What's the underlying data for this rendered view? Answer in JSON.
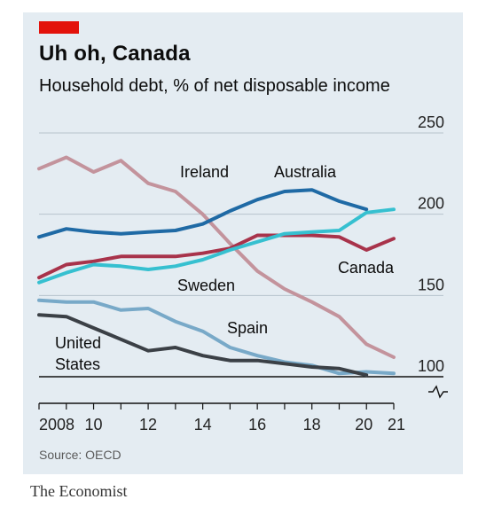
{
  "header": {
    "title": "Uh oh, Canada",
    "subtitle": "Household debt, % of net disposable income"
  },
  "footer": {
    "source": "Source: OECD",
    "brand": "The Economist"
  },
  "colors": {
    "panel": "#e4ecf2",
    "accent": "#e3120b",
    "grid": "#b7c3cc"
  },
  "chart_data": {
    "type": "line",
    "title": "Uh oh, Canada",
    "subtitle": "Household debt, % of net disposable income",
    "xlabel": "",
    "ylabel": "",
    "ylim": [
      100,
      250
    ],
    "y_axis_break": true,
    "y_axis_position": "right",
    "grid": "horizontal",
    "x": [
      2008,
      2009,
      2010,
      2011,
      2012,
      2013,
      2014,
      2015,
      2016,
      2017,
      2018,
      2019,
      2020,
      2021
    ],
    "x_tick_labels": [
      "2008",
      "10",
      "12",
      "14",
      "16",
      "18",
      "20",
      "21"
    ],
    "x_tick_values": [
      2008,
      2010,
      2012,
      2014,
      2016,
      2018,
      2020,
      2021
    ],
    "y_ticks": [
      100,
      150,
      200,
      250
    ],
    "y_tick_labels": [
      "100",
      "150",
      "200",
      "250"
    ],
    "series": [
      {
        "name": "Ireland",
        "color": "#c3939c",
        "values": [
          228,
          235,
          226,
          233,
          219,
          214,
          200,
          182,
          165,
          154,
          146,
          137,
          120,
          112
        ]
      },
      {
        "name": "Australia",
        "color": "#1f6aa5",
        "values": [
          186,
          191,
          189,
          188,
          189,
          190,
          194,
          202,
          209,
          214,
          215,
          208,
          203,
          null
        ]
      },
      {
        "name": "Canada",
        "color": "#a8334b",
        "values": [
          161,
          169,
          171,
          174,
          174,
          174,
          176,
          179,
          187,
          187,
          187,
          186,
          178,
          185
        ]
      },
      {
        "name": "Sweden",
        "color": "#36c0d0",
        "values": [
          158,
          164,
          169,
          168,
          166,
          168,
          172,
          178,
          183,
          188,
          189,
          190,
          201,
          203
        ]
      },
      {
        "name": "Spain",
        "color": "#78a9c8",
        "values": [
          147,
          146,
          146,
          141,
          142,
          134,
          128,
          118,
          113,
          109,
          107,
          102,
          103,
          102
        ]
      },
      {
        "name": "United States",
        "color": "#3b4046",
        "values": [
          138,
          137,
          130,
          123,
          116,
          118,
          113,
          110,
          110,
          108,
          106,
          105,
          101,
          null
        ]
      }
    ],
    "series_labels": [
      "Ireland",
      "Australia",
      "Canada",
      "Sweden",
      "Spain",
      "United",
      "States"
    ]
  }
}
